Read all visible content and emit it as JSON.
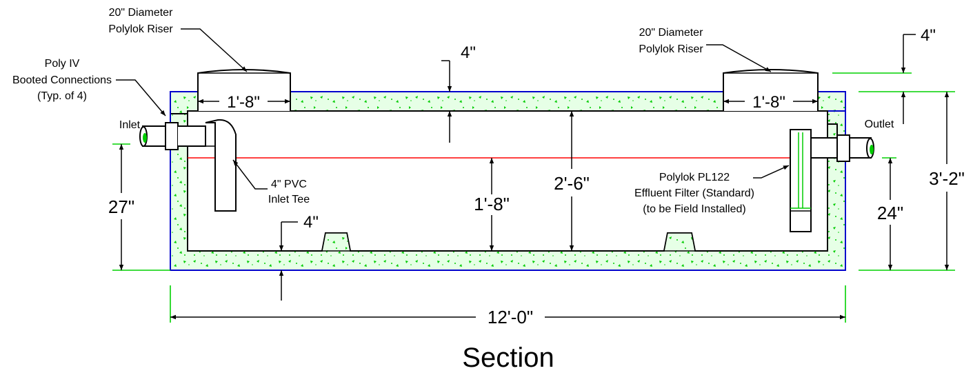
{
  "title": "Section",
  "colors": {
    "concrete_fill": "#e6ffe6",
    "concrete_speckle": "#00cc00",
    "outline": "#0000cc",
    "water_line": "#ff0000",
    "extension_line": "#00d000"
  },
  "labels": {
    "riser_left_line1": "20\" Diameter",
    "riser_left_line2": "Polylok Riser",
    "riser_right_line1": "20\" Diameter",
    "riser_right_line2": "Polylok Riser",
    "booted_line1": "Poly IV",
    "booted_line2": "Booted Connections",
    "booted_line3": "(Typ. of 4)",
    "inlet": "Inlet",
    "outlet": "Outlet",
    "inlet_tee_line1": "4\" PVC",
    "inlet_tee_line2": "Inlet Tee",
    "filter_line1": "Polylok PL122",
    "filter_line2": "Effluent Filter (Standard)",
    "filter_line3": "(to be Field Installed)"
  },
  "dimensions": {
    "top_slab": "4\"",
    "riser_left_width": "1'-8\"",
    "riser_right_width": "1'-8\"",
    "riser_height": "4\"",
    "inlet_invert": "27\"",
    "outlet_invert": "24\"",
    "overall_height": "3'-2\"",
    "interior_height": "2'-6\"",
    "liquid_depth": "1'-8\"",
    "bottom_slab": "4\"",
    "overall_length": "12'-0\""
  }
}
